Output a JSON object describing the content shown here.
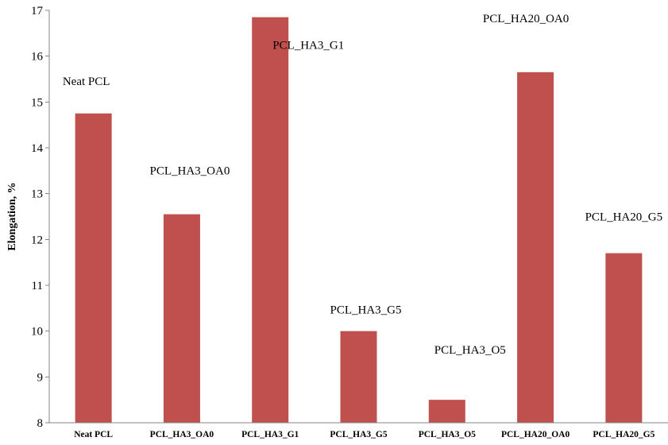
{
  "chart_data": {
    "type": "bar",
    "title": "",
    "xlabel": "",
    "ylabel": "Elongation, %",
    "categories": [
      "Neat PCL",
      "PCL_HA3_OA0",
      "PCL_HA3_G1",
      "PCL_HA3_G5",
      "PCL_HA3_O5",
      "PCL_HA20_OA0",
      "PCL_HA20_G5"
    ],
    "values": [
      14.75,
      12.55,
      16.85,
      10.0,
      8.5,
      15.65,
      11.7
    ],
    "data_labels": [
      "Neat PCL",
      "PCL_HA3_OA0",
      "PCL_HA3_G1",
      "PCL_HA3_G5",
      "PCL_HA3_O5",
      "PCL_HA20_OA0",
      "PCL_HA20_G5"
    ],
    "ylim": [
      8,
      17
    ],
    "yticks": [
      8,
      9,
      10,
      11,
      12,
      13,
      14,
      15,
      16,
      17
    ],
    "grid": false,
    "legend": "none",
    "bar_color": "#c0504d"
  }
}
